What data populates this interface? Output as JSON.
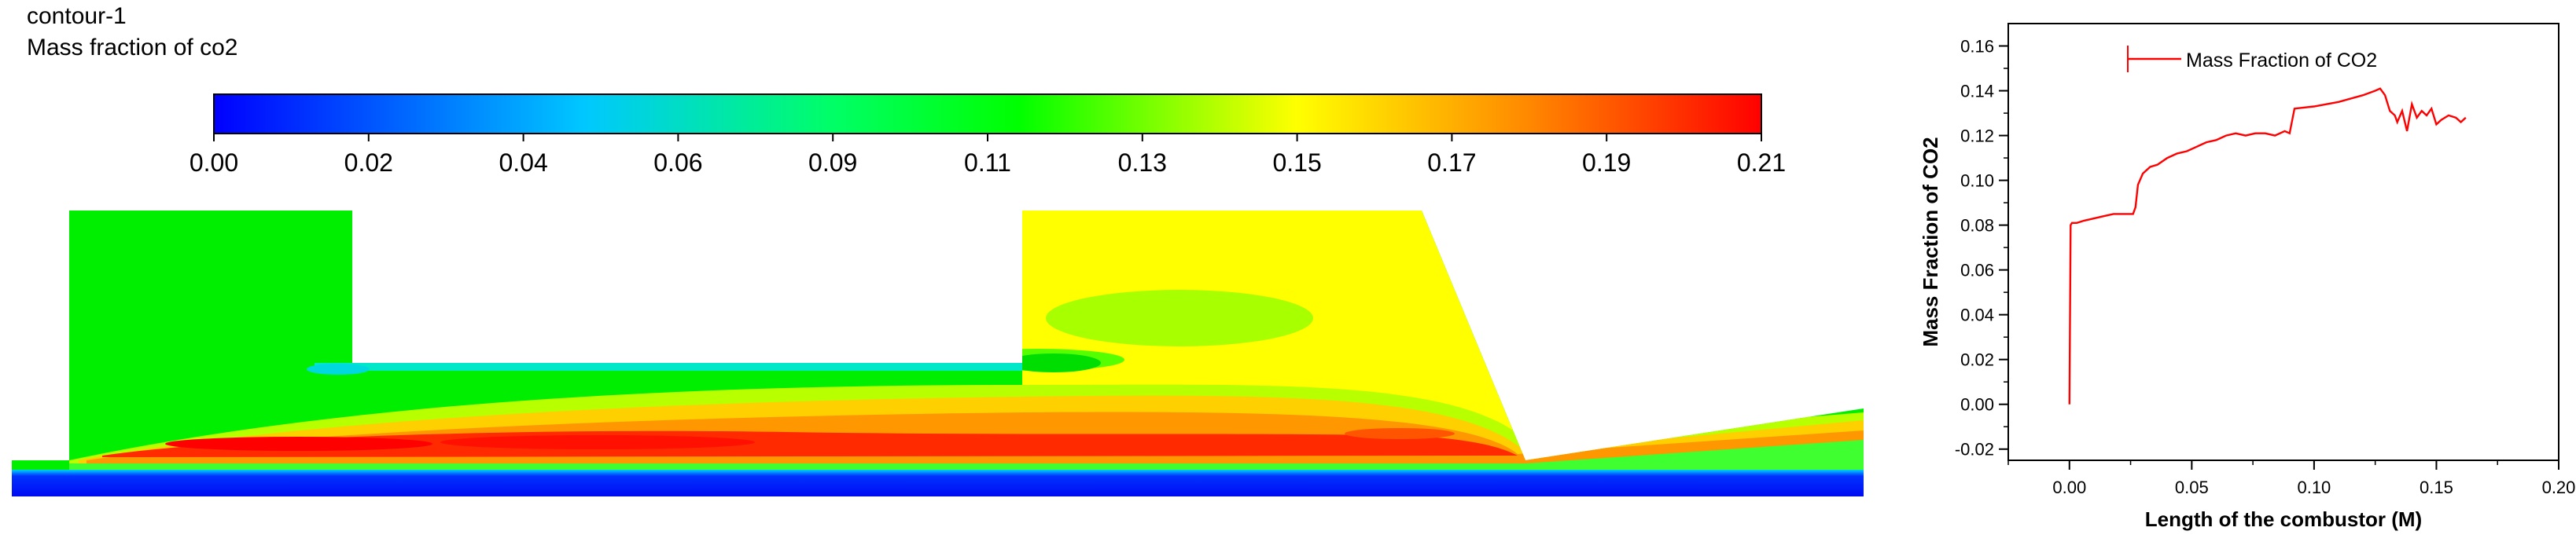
{
  "contour": {
    "title": "contour-1",
    "subtitle": "Mass fraction of co2",
    "colorbar": {
      "min": 0.0,
      "max": 0.21,
      "ticks": [
        "0.00",
        "0.02",
        "0.04",
        "0.06",
        "0.09",
        "0.11",
        "0.13",
        "0.15",
        "0.17",
        "0.19",
        "0.21"
      ],
      "colors": [
        "#0000ff",
        "#00c8ff",
        "#00ff66",
        "#00ff00",
        "#ffff00",
        "#ff8800",
        "#ff0000"
      ]
    }
  },
  "chart_data": {
    "type": "line",
    "xlabel": "Length of the combustor (M)",
    "ylabel": "Mass Fraction of CO2",
    "xlim": [
      -0.025,
      0.2
    ],
    "ylim": [
      -0.025,
      0.17
    ],
    "xticks": [
      "0.00",
      "0.05",
      "0.10",
      "0.15",
      "0.20"
    ],
    "yticks": [
      "-0.02",
      "0.00",
      "0.02",
      "0.04",
      "0.06",
      "0.08",
      "0.10",
      "0.12",
      "0.14",
      "0.16"
    ],
    "legend_position": "top-left",
    "grid": false,
    "series": [
      {
        "name": "Mass Fraction of CO2",
        "color": "#ff0000",
        "x": [
          0.0,
          0.0005,
          0.001,
          0.003,
          0.006,
          0.01,
          0.014,
          0.018,
          0.022,
          0.026,
          0.027,
          0.028,
          0.03,
          0.033,
          0.036,
          0.04,
          0.044,
          0.048,
          0.052,
          0.056,
          0.06,
          0.064,
          0.068,
          0.072,
          0.076,
          0.08,
          0.084,
          0.088,
          0.09,
          0.092,
          0.1,
          0.11,
          0.12,
          0.125,
          0.127,
          0.129,
          0.131,
          0.133,
          0.134,
          0.136,
          0.138,
          0.14,
          0.142,
          0.144,
          0.146,
          0.148,
          0.15,
          0.152,
          0.155,
          0.158,
          0.16,
          0.162
        ],
        "y": [
          0.0,
          0.08,
          0.081,
          0.081,
          0.082,
          0.083,
          0.084,
          0.085,
          0.085,
          0.085,
          0.088,
          0.098,
          0.103,
          0.106,
          0.107,
          0.11,
          0.112,
          0.113,
          0.115,
          0.117,
          0.118,
          0.12,
          0.121,
          0.12,
          0.121,
          0.121,
          0.12,
          0.122,
          0.121,
          0.132,
          0.133,
          0.135,
          0.138,
          0.14,
          0.141,
          0.138,
          0.131,
          0.129,
          0.126,
          0.131,
          0.122,
          0.134,
          0.128,
          0.131,
          0.129,
          0.132,
          0.125,
          0.127,
          0.129,
          0.128,
          0.126,
          0.128
        ]
      }
    ]
  }
}
